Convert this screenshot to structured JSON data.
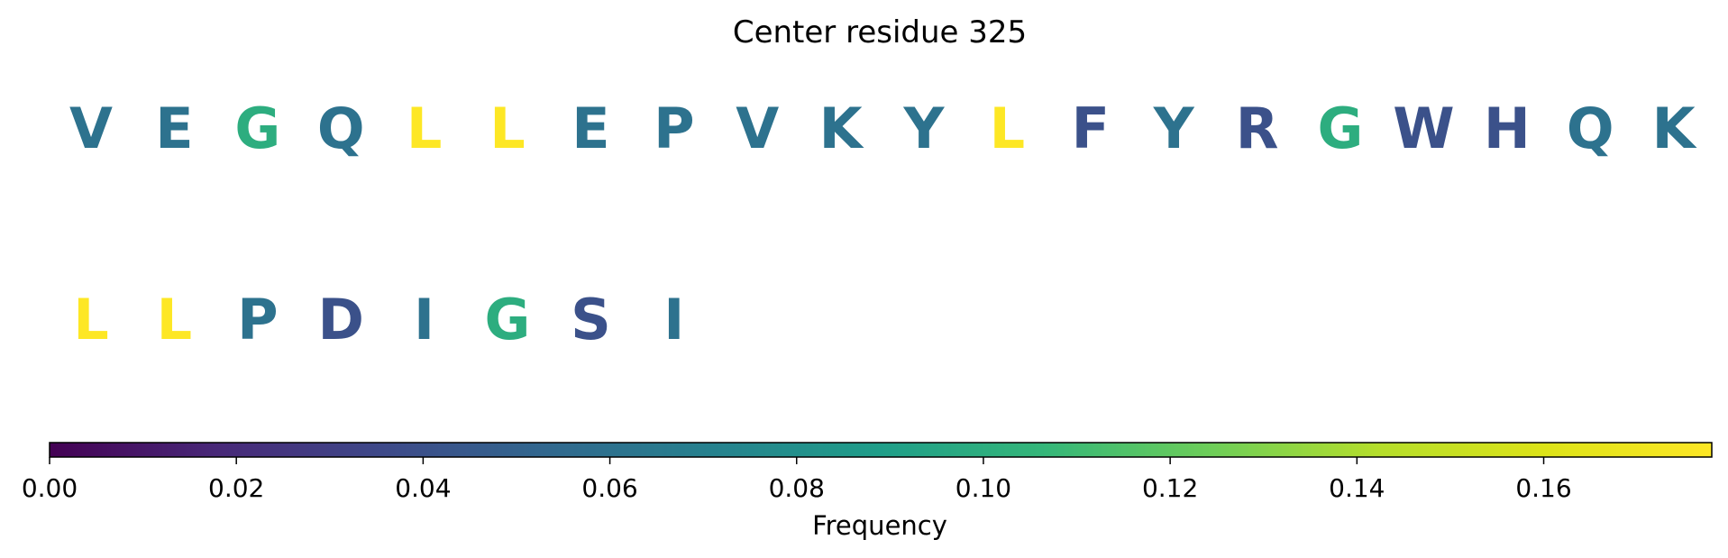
{
  "chart_data": {
    "type": "heatmap",
    "title": "Center residue 325",
    "residues": [
      {
        "letter": "V",
        "freq": 0.06
      },
      {
        "letter": "E",
        "freq": 0.06
      },
      {
        "letter": "G",
        "freq": 0.1
      },
      {
        "letter": "Q",
        "freq": 0.06
      },
      {
        "letter": "L",
        "freq": 0.18
      },
      {
        "letter": "L",
        "freq": 0.18
      },
      {
        "letter": "E",
        "freq": 0.06
      },
      {
        "letter": "P",
        "freq": 0.06
      },
      {
        "letter": "V",
        "freq": 0.06
      },
      {
        "letter": "K",
        "freq": 0.06
      },
      {
        "letter": "Y",
        "freq": 0.06
      },
      {
        "letter": "L",
        "freq": 0.18
      },
      {
        "letter": "F",
        "freq": 0.04
      },
      {
        "letter": "Y",
        "freq": 0.06
      },
      {
        "letter": "R",
        "freq": 0.04
      },
      {
        "letter": "G",
        "freq": 0.1
      },
      {
        "letter": "W",
        "freq": 0.04
      },
      {
        "letter": "H",
        "freq": 0.04
      },
      {
        "letter": "Q",
        "freq": 0.06
      },
      {
        "letter": "K",
        "freq": 0.06
      },
      {
        "letter": "L",
        "freq": 0.18
      },
      {
        "letter": "L",
        "freq": 0.18
      },
      {
        "letter": "P",
        "freq": 0.06
      },
      {
        "letter": "D",
        "freq": 0.04
      },
      {
        "letter": "I",
        "freq": 0.06
      },
      {
        "letter": "G",
        "freq": 0.1
      },
      {
        "letter": "S",
        "freq": 0.04
      },
      {
        "letter": "I",
        "freq": 0.06
      }
    ],
    "colorbar": {
      "label": "Frequency",
      "range": [
        0,
        0.178
      ],
      "ticks": [
        0,
        0.02,
        0.04,
        0.06,
        0.08,
        0.1,
        0.12,
        0.14,
        0.16
      ],
      "tick_labels": [
        "0.00",
        "0.02",
        "0.04",
        "0.06",
        "0.08",
        "0.10",
        "0.12",
        "0.14",
        "0.16"
      ],
      "colormap": "viridis"
    }
  }
}
